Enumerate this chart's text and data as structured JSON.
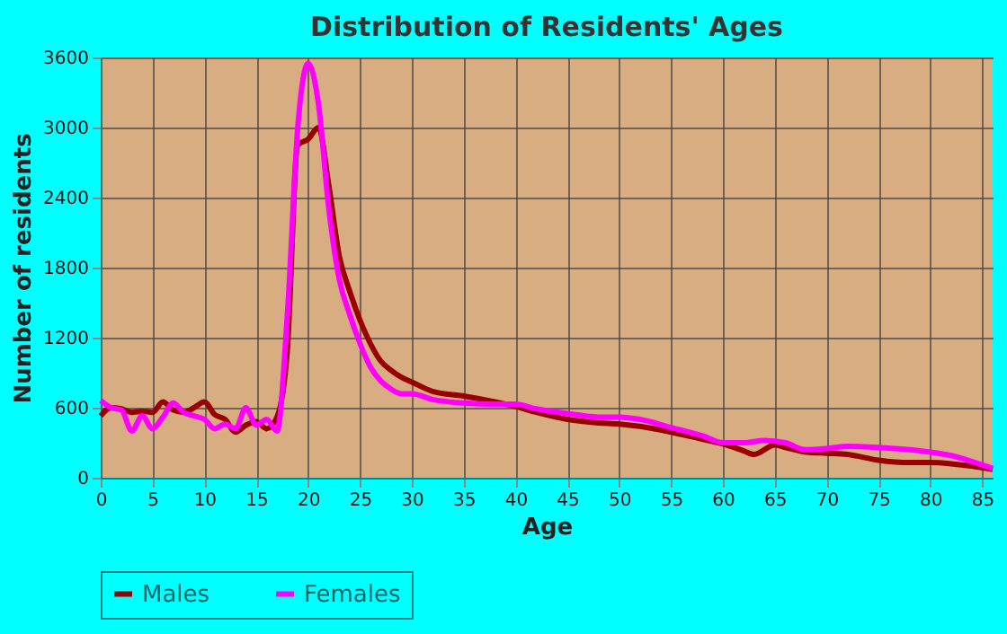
{
  "chart_data": {
    "type": "line",
    "title": "Distribution of Residents' Ages",
    "xlabel": "Age",
    "ylabel": "Number of residents",
    "xlim": [
      0,
      86
    ],
    "ylim": [
      0,
      3600
    ],
    "xticks": [
      0,
      5,
      10,
      15,
      20,
      25,
      30,
      35,
      40,
      45,
      50,
      55,
      60,
      65,
      70,
      75,
      80,
      85
    ],
    "yticks": [
      0,
      600,
      1200,
      1800,
      2400,
      3000,
      3600
    ],
    "grid": true,
    "legend": "bottom",
    "marker": "none",
    "line_style": "solid",
    "series": [
      {
        "name": "Males",
        "color": "#990000",
        "x": [
          0,
          1,
          2,
          3,
          4,
          5,
          6,
          7,
          8,
          9,
          10,
          11,
          12,
          13,
          14,
          15,
          16,
          17,
          18,
          19,
          20,
          21,
          22,
          23,
          24,
          25,
          26,
          27,
          28,
          29,
          30,
          32,
          35,
          38,
          40,
          42,
          45,
          48,
          50,
          52,
          55,
          58,
          60,
          62,
          63,
          65,
          66,
          68,
          70,
          72,
          75,
          78,
          80,
          82,
          84,
          86
        ],
        "values": [
          530,
          600,
          590,
          560,
          570,
          560,
          650,
          580,
          560,
          600,
          650,
          540,
          500,
          390,
          450,
          480,
          420,
          520,
          1100,
          2850,
          2900,
          3000,
          2500,
          1900,
          1600,
          1350,
          1150,
          1000,
          920,
          860,
          820,
          740,
          700,
          650,
          610,
          560,
          500,
          470,
          460,
          440,
          390,
          330,
          290,
          230,
          200,
          280,
          260,
          220,
          210,
          200,
          150,
          130,
          130,
          120,
          100,
          70
        ]
      },
      {
        "name": "Females",
        "color": "#ff00ff",
        "x": [
          0,
          1,
          2,
          3,
          4,
          5,
          6,
          7,
          8,
          9,
          10,
          11,
          12,
          13,
          14,
          15,
          16,
          17,
          18,
          19,
          20,
          21,
          22,
          23,
          24,
          25,
          26,
          27,
          28,
          29,
          30,
          32,
          35,
          38,
          40,
          42,
          45,
          48,
          50,
          52,
          55,
          58,
          60,
          62,
          64,
          66,
          68,
          70,
          72,
          75,
          78,
          80,
          82,
          84,
          86
        ],
        "values": [
          660,
          600,
          580,
          400,
          530,
          420,
          520,
          640,
          560,
          530,
          500,
          420,
          460,
          420,
          600,
          450,
          500,
          400,
          1400,
          3000,
          3550,
          3200,
          2300,
          1700,
          1400,
          1150,
          950,
          830,
          760,
          720,
          720,
          670,
          640,
          630,
          630,
          590,
          550,
          520,
          520,
          500,
          430,
          360,
          300,
          300,
          320,
          300,
          240,
          250,
          270,
          260,
          240,
          220,
          190,
          140,
          80
        ]
      }
    ]
  }
}
